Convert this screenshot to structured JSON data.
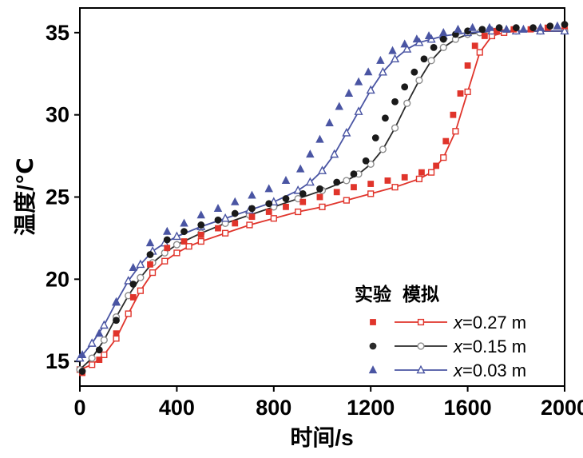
{
  "figure": {
    "background": "#ffffff"
  },
  "chart_data": {
    "type": "line+scatter",
    "title": "",
    "xlabel": "时间/s",
    "ylabel": "温度/℃",
    "xlim": [
      0,
      2000
    ],
    "ylim": [
      13.5,
      36.5
    ],
    "xticks": [
      0,
      400,
      800,
      1200,
      1600,
      2000
    ],
    "yticks": [
      15,
      20,
      25,
      30,
      35
    ],
    "grid": false,
    "colors": {
      "red": "#e0342b",
      "black": "#2b2b2b",
      "blue": "#4a55a3"
    },
    "legend": {
      "position": "bottom-right-inside",
      "col_experiment": "实验",
      "col_simulation": "模拟",
      "entries": [
        {
          "label": "x=0.27 m",
          "color": "#e0342b",
          "marker": "square",
          "marker_stroke": "#e0342b"
        },
        {
          "label": "x=0.15 m",
          "color": "#2b2b2b",
          "marker": "circle",
          "marker_stroke": "#8c8c8c"
        },
        {
          "label": "x=0.03 m",
          "color": "#4a55a3",
          "marker": "triangle",
          "marker_stroke": "#4a55a3"
        }
      ]
    },
    "series": [
      {
        "id": "sim-x027",
        "name": "模拟 x=0.27 m",
        "kind": "line",
        "color": "#e0342b",
        "marker": "square",
        "marker_fill": "#ffffff",
        "marker_stroke": "#e0342b",
        "points": [
          [
            0,
            14.5
          ],
          [
            50,
            14.8
          ],
          [
            100,
            15.4
          ],
          [
            150,
            16.4
          ],
          [
            200,
            17.9
          ],
          [
            250,
            19.3
          ],
          [
            300,
            20.4
          ],
          [
            350,
            21.1
          ],
          [
            400,
            21.6
          ],
          [
            450,
            22.0
          ],
          [
            500,
            22.3
          ],
          [
            600,
            22.8
          ],
          [
            700,
            23.3
          ],
          [
            800,
            23.7
          ],
          [
            900,
            24.1
          ],
          [
            1000,
            24.4
          ],
          [
            1100,
            24.8
          ],
          [
            1200,
            25.2
          ],
          [
            1300,
            25.6
          ],
          [
            1400,
            26.1
          ],
          [
            1450,
            26.5
          ],
          [
            1500,
            27.4
          ],
          [
            1550,
            29.0
          ],
          [
            1600,
            31.4
          ],
          [
            1650,
            33.8
          ],
          [
            1700,
            34.8
          ],
          [
            1750,
            35.0
          ],
          [
            1800,
            35.1
          ],
          [
            1900,
            35.1
          ],
          [
            2000,
            35.1
          ]
        ]
      },
      {
        "id": "sim-x015",
        "name": "模拟 x=0.15 m",
        "kind": "line",
        "color": "#2b2b2b",
        "marker": "circle",
        "marker_fill": "#ffffff",
        "marker_stroke": "#8c8c8c",
        "points": [
          [
            0,
            14.5
          ],
          [
            50,
            15.2
          ],
          [
            100,
            16.3
          ],
          [
            150,
            17.7
          ],
          [
            200,
            19.0
          ],
          [
            250,
            20.1
          ],
          [
            300,
            21.0
          ],
          [
            350,
            21.6
          ],
          [
            400,
            22.1
          ],
          [
            500,
            22.8
          ],
          [
            600,
            23.4
          ],
          [
            700,
            23.9
          ],
          [
            800,
            24.4
          ],
          [
            900,
            24.9
          ],
          [
            1000,
            25.4
          ],
          [
            1100,
            26.0
          ],
          [
            1150,
            26.4
          ],
          [
            1200,
            27.0
          ],
          [
            1250,
            27.9
          ],
          [
            1300,
            29.2
          ],
          [
            1350,
            30.7
          ],
          [
            1400,
            32.1
          ],
          [
            1450,
            33.3
          ],
          [
            1500,
            34.1
          ],
          [
            1550,
            34.6
          ],
          [
            1600,
            34.9
          ],
          [
            1650,
            35.0
          ],
          [
            1700,
            35.1
          ],
          [
            1800,
            35.1
          ],
          [
            1900,
            35.1
          ],
          [
            2000,
            35.1
          ]
        ]
      },
      {
        "id": "sim-x003",
        "name": "模拟 x=0.03 m",
        "kind": "line",
        "color": "#4a55a3",
        "marker": "triangle",
        "marker_fill": "#ffffff",
        "marker_stroke": "#4a55a3",
        "points": [
          [
            0,
            15.2
          ],
          [
            50,
            16.1
          ],
          [
            100,
            17.2
          ],
          [
            150,
            18.6
          ],
          [
            200,
            19.9
          ],
          [
            250,
            20.9
          ],
          [
            300,
            21.7
          ],
          [
            350,
            22.2
          ],
          [
            400,
            22.6
          ],
          [
            500,
            23.2
          ],
          [
            600,
            23.7
          ],
          [
            700,
            24.2
          ],
          [
            800,
            24.7
          ],
          [
            900,
            25.4
          ],
          [
            950,
            25.9
          ],
          [
            1000,
            26.6
          ],
          [
            1050,
            27.6
          ],
          [
            1100,
            28.9
          ],
          [
            1150,
            30.2
          ],
          [
            1200,
            31.5
          ],
          [
            1250,
            32.6
          ],
          [
            1300,
            33.4
          ],
          [
            1350,
            34.0
          ],
          [
            1400,
            34.4
          ],
          [
            1450,
            34.6
          ],
          [
            1500,
            34.8
          ],
          [
            1600,
            35.0
          ],
          [
            1700,
            35.1
          ],
          [
            1800,
            35.1
          ],
          [
            1900,
            35.1
          ],
          [
            2000,
            35.1
          ]
        ]
      },
      {
        "id": "exp-x027",
        "name": "实验 x=0.27 m",
        "kind": "scatter",
        "color": "#e0342b",
        "marker": "square",
        "points": [
          [
            10,
            14.3
          ],
          [
            80,
            15.1
          ],
          [
            150,
            16.7
          ],
          [
            220,
            18.9
          ],
          [
            290,
            20.9
          ],
          [
            360,
            21.9
          ],
          [
            430,
            22.3
          ],
          [
            500,
            22.7
          ],
          [
            570,
            23.1
          ],
          [
            640,
            23.4
          ],
          [
            710,
            23.8
          ],
          [
            780,
            24.1
          ],
          [
            850,
            24.4
          ],
          [
            920,
            24.7
          ],
          [
            990,
            25.0
          ],
          [
            1060,
            25.3
          ],
          [
            1130,
            25.6
          ],
          [
            1200,
            25.8
          ],
          [
            1270,
            26.0
          ],
          [
            1340,
            26.2
          ],
          [
            1410,
            26.5
          ],
          [
            1470,
            26.9
          ],
          [
            1510,
            28.4
          ],
          [
            1540,
            30.0
          ],
          [
            1570,
            31.3
          ],
          [
            1600,
            33.0
          ],
          [
            1630,
            34.2
          ],
          [
            1670,
            34.8
          ],
          [
            1720,
            35.1
          ],
          [
            1790,
            35.2
          ],
          [
            1860,
            35.2
          ],
          [
            1930,
            35.3
          ],
          [
            2000,
            35.4
          ]
        ]
      },
      {
        "id": "exp-x015",
        "name": "实验 x=0.15 m",
        "kind": "scatter",
        "color": "#1a1a1a",
        "marker": "circle",
        "points": [
          [
            10,
            14.4
          ],
          [
            80,
            15.7
          ],
          [
            150,
            17.5
          ],
          [
            220,
            19.7
          ],
          [
            290,
            21.5
          ],
          [
            360,
            22.4
          ],
          [
            430,
            22.9
          ],
          [
            500,
            23.3
          ],
          [
            570,
            23.6
          ],
          [
            640,
            24.0
          ],
          [
            710,
            24.3
          ],
          [
            780,
            24.6
          ],
          [
            850,
            24.9
          ],
          [
            920,
            25.2
          ],
          [
            990,
            25.5
          ],
          [
            1060,
            25.9
          ],
          [
            1130,
            26.4
          ],
          [
            1180,
            27.2
          ],
          [
            1220,
            28.6
          ],
          [
            1260,
            29.8
          ],
          [
            1300,
            30.8
          ],
          [
            1340,
            31.7
          ],
          [
            1380,
            32.6
          ],
          [
            1420,
            33.4
          ],
          [
            1460,
            34.1
          ],
          [
            1500,
            34.6
          ],
          [
            1550,
            34.9
          ],
          [
            1600,
            35.1
          ],
          [
            1660,
            35.2
          ],
          [
            1730,
            35.3
          ],
          [
            1800,
            35.3
          ],
          [
            1870,
            35.3
          ],
          [
            1940,
            35.4
          ],
          [
            2000,
            35.5
          ]
        ]
      },
      {
        "id": "exp-x003",
        "name": "实验 x=0.03 m",
        "kind": "scatter",
        "color": "#4a55a3",
        "marker": "triangle",
        "points": [
          [
            10,
            15.4
          ],
          [
            80,
            16.7
          ],
          [
            150,
            18.6
          ],
          [
            220,
            20.7
          ],
          [
            290,
            22.2
          ],
          [
            360,
            22.9
          ],
          [
            430,
            23.4
          ],
          [
            500,
            23.9
          ],
          [
            570,
            24.3
          ],
          [
            640,
            24.7
          ],
          [
            710,
            25.1
          ],
          [
            780,
            25.5
          ],
          [
            850,
            26.0
          ],
          [
            910,
            26.7
          ],
          [
            950,
            27.6
          ],
          [
            990,
            28.5
          ],
          [
            1030,
            29.5
          ],
          [
            1070,
            30.5
          ],
          [
            1110,
            31.3
          ],
          [
            1150,
            32.0
          ],
          [
            1190,
            32.6
          ],
          [
            1240,
            33.3
          ],
          [
            1290,
            33.9
          ],
          [
            1340,
            34.3
          ],
          [
            1390,
            34.6
          ],
          [
            1440,
            34.8
          ],
          [
            1500,
            35.0
          ],
          [
            1560,
            35.2
          ],
          [
            1620,
            35.3
          ],
          [
            1690,
            35.3
          ],
          [
            1760,
            35.2
          ],
          [
            1830,
            35.2
          ],
          [
            1900,
            35.3
          ],
          [
            1970,
            35.4
          ]
        ]
      }
    ]
  }
}
